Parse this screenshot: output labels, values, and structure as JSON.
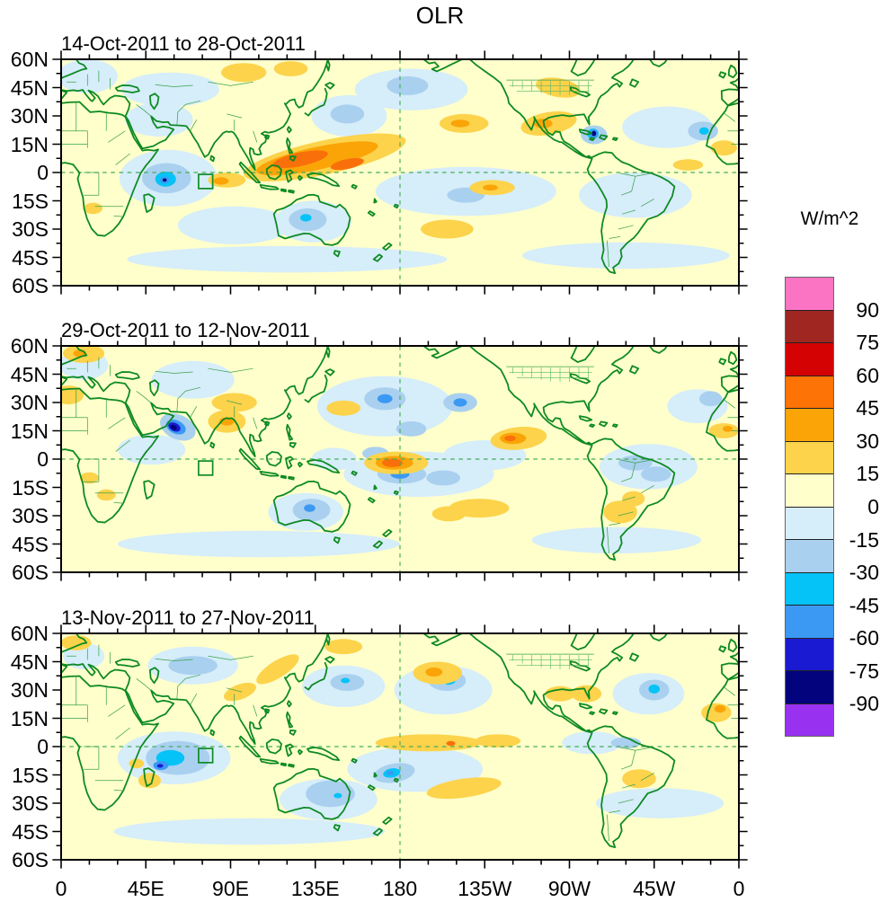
{
  "figure": {
    "title": "OLR"
  },
  "panels": [
    {
      "title": "14-Oct-2011 to 28-Oct-2011"
    },
    {
      "title": "29-Oct-2011 to 12-Nov-2011"
    },
    {
      "title": "13-Nov-2011 to 27-Nov-2011"
    }
  ],
  "axes": {
    "lat_tick_labels": [
      "60N",
      "45N",
      "30N",
      "15N",
      "0",
      "15S",
      "30S",
      "45S",
      "60S"
    ],
    "lon_tick_labels": [
      "0",
      "45E",
      "90E",
      "135E",
      "180",
      "135W",
      "90W",
      "45W",
      "0"
    ],
    "lon_major_step_deg": 45,
    "lon_minor_step_deg": 15,
    "lat_major_step_deg": 15,
    "lat_minor_step_deg": 7.5,
    "lon_range_deg": [
      0,
      360
    ],
    "lat_range_deg": [
      -60,
      60
    ]
  },
  "colorbar": {
    "label": "W/m^2",
    "tick_labels": [
      "90",
      "75",
      "60",
      "45",
      "30",
      "15",
      "0",
      "-15",
      "-30",
      "-45",
      "-60",
      "-75",
      "-90"
    ],
    "colors_top_to_bottom": [
      "#fb74c4",
      "#a02622",
      "#d40203",
      "#fd7306",
      "#fba407",
      "#fcd34b",
      "#ffffcb",
      "#d6edfa",
      "#a9d0ef",
      "#06c3f7",
      "#3b99f3",
      "#1a1ad2",
      "#03037e",
      "#9931f0"
    ]
  },
  "chart_data": {
    "type": "heatmap",
    "subtype": "filled-contour anomaly maps (3 stacked global panels, 60S-60N, 0-360E)",
    "title": "OLR",
    "units": "W/m^2",
    "contour_interval": 15,
    "levels": [
      -90,
      -75,
      -60,
      -45,
      -30,
      -15,
      0,
      15,
      30,
      45,
      60,
      75,
      90
    ],
    "legend_position": "right",
    "map_overlay": {
      "coastline_color": "green",
      "us_state_borders": true,
      "equator_dashed_line": true,
      "dateline_dashed_line_at_180": true,
      "index_region_box": {
        "lon_deg_e": [
          73,
          80.5
        ],
        "lat_deg": [
          -8.5,
          -1
        ]
      }
    },
    "panels": [
      {
        "period": "14-Oct-2011 to 28-Oct-2011",
        "anomalies": [
          {
            "region": "western Pacific / Maritime Continent band (~110E-180, 0-15N)",
            "sign": "positive",
            "peak_w_m2": 60
          },
          {
            "region": "western Indian Ocean (~55-70E, 0-10S)",
            "sign": "negative",
            "peak_w_m2": -60
          },
          {
            "region": "Caribbean / Cuba (~80W, 20N)",
            "sign": "negative",
            "peak_w_m2": -75
          },
          {
            "region": "Mexico and central US",
            "sign": "positive",
            "peak_w_m2": 30
          },
          {
            "region": "central Australia",
            "sign": "negative",
            "peak_w_m2": -45
          },
          {
            "region": "subtropical east Pacific (~130-150W)",
            "sign": "positive",
            "peak_w_m2": 45
          }
        ]
      },
      {
        "period": "29-Oct-2011 to 12-Nov-2011",
        "anomalies": [
          {
            "region": "Arabian Sea (~60-65E, 15-20N)",
            "sign": "negative",
            "peak_w_m2": -75
          },
          {
            "region": "equator near dateline (~170E-170W)",
            "sign": "positive",
            "peak_w_m2": 45
          },
          {
            "region": "east Pacific off Mexico (~115W, 10N)",
            "sign": "positive",
            "peak_w_m2": 45
          },
          {
            "region": "central North Pacific (~170-150W, 20-40N)",
            "sign": "negative",
            "peak_w_m2": -45
          },
          {
            "region": "Australia",
            "sign": "negative",
            "peak_w_m2": -45
          },
          {
            "region": "Bay of Bengal",
            "sign": "positive",
            "peak_w_m2": 30
          },
          {
            "region": "southeastern South America",
            "sign": "positive",
            "peak_w_m2": 30
          }
        ]
      },
      {
        "period": "13-Nov-2011 to 27-Nov-2011",
        "anomalies": [
          {
            "region": "central Indian Ocean (~50-80E, 0-15S)",
            "sign": "negative",
            "peak_w_m2": -60
          },
          {
            "region": "equatorial central Pacific (170E-140W)",
            "sign": "positive",
            "peak_w_m2": 30
          },
          {
            "region": "southwest Pacific near Fiji (~175E, 15S)",
            "sign": "negative",
            "peak_w_m2": -45
          },
          {
            "region": "eastern Australia",
            "sign": "negative",
            "peak_w_m2": -30
          },
          {
            "region": "North Pacific (~160W, 30-40N)",
            "sign": "positive",
            "peak_w_m2": 45
          },
          {
            "region": "central subtropical Atlantic (~45W, 28N)",
            "sign": "negative",
            "peak_w_m2": -45
          },
          {
            "region": "subtropical South Pacific band",
            "sign": "positive",
            "peak_w_m2": 30
          }
        ]
      }
    ]
  }
}
